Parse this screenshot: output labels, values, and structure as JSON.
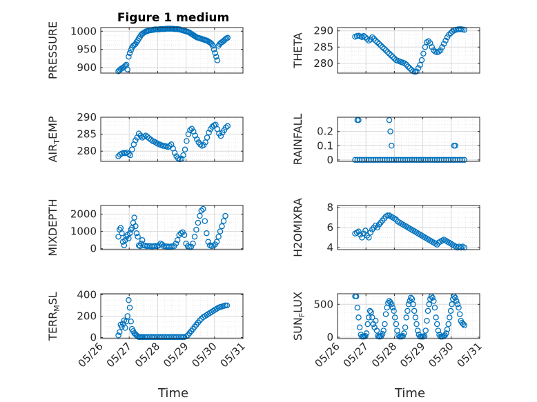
{
  "title": "Figure 1 medium",
  "x_axis_label": "Time",
  "x_tick_labels": [
    "05/26",
    "05/27",
    "05/28",
    "05/29",
    "05/30",
    "05/31"
  ],
  "colors": {
    "marker": "#0072BD",
    "axis": "#262626",
    "grid": "#d9d9d9",
    "minor_grid": "#e6e6e6",
    "background": "#ffffff"
  },
  "chart_data": [
    {
      "type": "scatter",
      "ylabel": "PRESSURE",
      "ylim": [
        885,
        1010
      ],
      "yticks": [
        900,
        950,
        1000
      ],
      "xlim": [
        0,
        5
      ],
      "x": [
        0.62,
        0.66,
        0.7,
        0.74,
        0.78,
        0.82,
        0.86,
        0.9,
        0.94,
        0.98,
        1.02,
        1.06,
        1.1,
        1.14,
        1.18,
        1.22,
        1.26,
        1.3,
        1.34,
        1.38,
        1.42,
        1.46,
        1.5,
        1.54,
        1.58,
        1.62,
        1.66,
        1.7,
        1.74,
        1.78,
        1.82,
        1.86,
        1.9,
        1.94,
        1.98,
        2.02,
        2.06,
        2.1,
        2.14,
        2.18,
        2.22,
        2.26,
        2.3,
        2.34,
        2.38,
        2.42,
        2.46,
        2.5,
        2.54,
        2.58,
        2.62,
        2.66,
        2.7,
        2.74,
        2.78,
        2.82,
        2.86,
        2.9,
        2.94,
        2.98,
        3.02,
        3.06,
        3.1,
        3.14,
        3.18,
        3.22,
        3.26,
        3.3,
        3.34,
        3.38,
        3.42,
        3.46,
        3.5,
        3.54,
        3.58,
        3.62,
        3.66,
        3.7,
        3.74,
        3.78,
        3.82,
        3.86,
        3.9,
        3.94,
        3.98,
        4.02,
        4.06,
        4.1,
        4.14,
        4.18,
        4.22,
        4.26,
        4.3,
        4.34,
        4.38,
        4.42,
        4.46
      ],
      "y": [
        890,
        893,
        896,
        898,
        900,
        902,
        905,
        908,
        895,
        930,
        940,
        948,
        955,
        960,
        962,
        965,
        970,
        975,
        980,
        985,
        990,
        993,
        995,
        997,
        999,
        1000,
        1001,
        1002,
        1003,
        1003,
        1004,
        1004,
        1005,
        1005,
        1005,
        1005,
        1005,
        1006,
        1006,
        1006,
        1006,
        1006,
        1007,
        1007,
        1007,
        1007,
        1007,
        1007,
        1007,
        1006,
        1006,
        1006,
        1006,
        1005,
        1005,
        1004,
        1003,
        1002,
        1001,
        1000,
        999,
        998,
        997,
        995,
        993,
        991,
        989,
        987,
        985,
        983,
        982,
        981,
        980,
        979,
        978,
        977,
        976,
        975,
        974,
        972,
        970,
        968,
        965,
        960,
        950,
        940,
        930,
        920,
        960,
        965,
        968,
        970,
        972,
        975,
        978,
        980,
        982
      ]
    },
    {
      "type": "scatter",
      "ylabel": "THETA",
      "ylim": [
        277,
        291
      ],
      "yticks": [
        280,
        285,
        290
      ],
      "xlim": [
        0,
        5
      ],
      "x": [
        0.62,
        0.68,
        0.74,
        0.8,
        0.86,
        0.92,
        0.98,
        1.04,
        1.1,
        1.16,
        1.22,
        1.28,
        1.34,
        1.4,
        1.46,
        1.52,
        1.58,
        1.64,
        1.7,
        1.76,
        1.82,
        1.88,
        1.94,
        2.0,
        2.06,
        2.12,
        2.18,
        2.24,
        2.3,
        2.36,
        2.42,
        2.48,
        2.54,
        2.6,
        2.66,
        2.72,
        2.78,
        2.84,
        2.9,
        2.96,
        3.02,
        3.08,
        3.14,
        3.2,
        3.26,
        3.32,
        3.38,
        3.44,
        3.5,
        3.56,
        3.62,
        3.68,
        3.74,
        3.8,
        3.86,
        3.92,
        3.98,
        4.04,
        4.1,
        4.16,
        4.22,
        4.28,
        4.34,
        4.4,
        4.46
      ],
      "y": [
        288.2,
        288.4,
        288.5,
        288.3,
        288.1,
        288.4,
        288.0,
        287.5,
        287.0,
        287.3,
        288.0,
        287.6,
        287.0,
        286.5,
        286.0,
        285.5,
        285.0,
        284.5,
        284.0,
        283.5,
        283.0,
        282.5,
        282.0,
        281.5,
        281.0,
        280.8,
        280.6,
        280.4,
        280.2,
        280.0,
        279.6,
        279.0,
        278.5,
        278.0,
        277.6,
        277.4,
        277.5,
        278.5,
        279.5,
        281.0,
        283.0,
        285.0,
        286.5,
        286.8,
        286.2,
        285.0,
        284.0,
        283.6,
        283.4,
        283.6,
        284.0,
        285.0,
        286.0,
        287.0,
        288.0,
        288.8,
        289.3,
        289.8,
        290.1,
        290.3,
        290.4,
        290.5,
        290.5,
        290.4,
        290.3
      ]
    },
    {
      "type": "scatter",
      "ylabel": "AIR_TEMP",
      "ylim": [
        277,
        290
      ],
      "yticks": [
        280,
        285,
        290
      ],
      "xlim": [
        0,
        5
      ],
      "x": [
        0.62,
        0.68,
        0.74,
        0.8,
        0.86,
        0.92,
        0.98,
        1.04,
        1.1,
        1.16,
        1.22,
        1.28,
        1.34,
        1.4,
        1.46,
        1.52,
        1.58,
        1.64,
        1.7,
        1.76,
        1.82,
        1.88,
        1.94,
        2.0,
        2.06,
        2.12,
        2.18,
        2.24,
        2.3,
        2.36,
        2.42,
        2.48,
        2.54,
        2.6,
        2.66,
        2.72,
        2.78,
        2.84,
        2.9,
        2.96,
        3.02,
        3.08,
        3.14,
        3.2,
        3.26,
        3.32,
        3.38,
        3.44,
        3.5,
        3.56,
        3.62,
        3.68,
        3.74,
        3.8,
        3.86,
        3.92,
        3.98,
        4.04,
        4.1,
        4.16,
        4.22,
        4.28,
        4.34,
        4.4,
        4.46
      ],
      "y": [
        278.5,
        279.0,
        279.3,
        279.5,
        279.4,
        279.6,
        279.2,
        278.8,
        280.5,
        282.0,
        283.2,
        284.0,
        285.2,
        284.6,
        284.0,
        284.3,
        284.6,
        284.2,
        283.8,
        283.4,
        283.0,
        282.8,
        282.5,
        282.2,
        282.0,
        281.8,
        281.6,
        281.5,
        281.4,
        281.2,
        281.5,
        282.0,
        280.8,
        279.5,
        278.5,
        277.9,
        277.6,
        277.8,
        278.8,
        280.5,
        283.0,
        285.0,
        286.2,
        286.6,
        285.8,
        284.6,
        283.5,
        282.6,
        282.0,
        281.6,
        281.8,
        282.6,
        284.0,
        285.5,
        286.5,
        287.2,
        287.6,
        287.8,
        286.5,
        285.2,
        284.5,
        285.5,
        286.2,
        287.0,
        287.4
      ]
    },
    {
      "type": "scatter",
      "ylabel": "RAINFALL",
      "ylim": [
        -0.01,
        0.3
      ],
      "yticks": [
        0,
        0.1,
        0.2
      ],
      "xlim": [
        0,
        5
      ],
      "x": [
        0.62,
        0.7,
        0.78,
        0.86,
        0.94,
        1.02,
        1.1,
        1.18,
        1.26,
        1.34,
        1.42,
        1.5,
        1.58,
        1.66,
        1.74,
        1.82,
        1.9,
        1.98,
        2.06,
        2.14,
        2.22,
        2.3,
        2.38,
        2.46,
        2.54,
        2.62,
        2.7,
        2.78,
        2.86,
        2.94,
        3.02,
        3.1,
        3.18,
        3.26,
        3.34,
        3.42,
        3.5,
        3.58,
        3.66,
        3.74,
        3.82,
        3.9,
        3.98,
        4.06,
        4.14,
        4.22,
        4.3,
        4.38,
        4.46,
        0.7,
        0.74,
        1.82,
        1.86,
        1.9,
        4.1,
        4.14
      ],
      "y": [
        0,
        0,
        0,
        0,
        0,
        0,
        0,
        0,
        0,
        0,
        0,
        0,
        0,
        0,
        0,
        0,
        0,
        0,
        0,
        0,
        0,
        0,
        0,
        0,
        0,
        0,
        0,
        0,
        0,
        0,
        0,
        0,
        0,
        0,
        0,
        0,
        0,
        0,
        0,
        0,
        0,
        0,
        0,
        0,
        0,
        0,
        0,
        0,
        0,
        0.28,
        0.28,
        0.28,
        0.2,
        0.1,
        0.1,
        0.1
      ]
    },
    {
      "type": "scatter",
      "ylabel": "MIXDEPTH",
      "ylim": [
        -50,
        2500
      ],
      "yticks": [
        0,
        1000,
        2000
      ],
      "xlim": [
        0,
        5
      ],
      "x": [
        0.62,
        0.66,
        0.7,
        0.74,
        0.78,
        0.82,
        0.86,
        0.9,
        0.94,
        0.98,
        1.02,
        1.06,
        1.1,
        1.14,
        1.18,
        1.22,
        1.26,
        1.3,
        1.34,
        1.38,
        1.42,
        1.46,
        1.5,
        1.56,
        1.62,
        1.68,
        1.74,
        1.8,
        1.86,
        1.92,
        1.98,
        2.04,
        2.1,
        2.16,
        2.22,
        2.28,
        2.34,
        2.4,
        2.46,
        2.52,
        2.58,
        2.64,
        2.7,
        2.76,
        2.82,
        2.88,
        2.94,
        3.0,
        3.06,
        3.12,
        3.18,
        3.24,
        3.3,
        3.36,
        3.42,
        3.48,
        3.54,
        3.6,
        3.66,
        3.72,
        3.78,
        3.84,
        3.9,
        3.96,
        4.02,
        4.08,
        4.14,
        4.2,
        4.26,
        4.32,
        4.38
      ],
      "y": [
        700,
        1100,
        1200,
        900,
        400,
        200,
        500,
        700,
        800,
        600,
        900,
        1100,
        1200,
        1500,
        1800,
        1300,
        900,
        700,
        200,
        150,
        300,
        500,
        200,
        180,
        150,
        160,
        150,
        140,
        150,
        160,
        150,
        200,
        300,
        250,
        150,
        140,
        130,
        120,
        130,
        140,
        150,
        300,
        500,
        800,
        900,
        950,
        800,
        300,
        150,
        100,
        120,
        300,
        700,
        1100,
        1500,
        1900,
        2200,
        2300,
        1600,
        900,
        400,
        200,
        150,
        180,
        250,
        400,
        700,
        1000,
        1300,
        1600,
        1900
      ]
    },
    {
      "type": "scatter",
      "ylabel": "H2OMIXRA",
      "ylim": [
        3.8,
        8.2
      ],
      "yticks": [
        4,
        6,
        8
      ],
      "xlim": [
        0,
        5
      ],
      "x": [
        0.62,
        0.68,
        0.74,
        0.8,
        0.86,
        0.92,
        0.98,
        1.04,
        1.1,
        1.16,
        1.22,
        1.28,
        1.34,
        1.4,
        1.46,
        1.52,
        1.58,
        1.64,
        1.7,
        1.76,
        1.82,
        1.88,
        1.94,
        2.0,
        2.06,
        2.12,
        2.18,
        2.24,
        2.3,
        2.36,
        2.42,
        2.48,
        2.54,
        2.6,
        2.66,
        2.72,
        2.78,
        2.84,
        2.9,
        2.96,
        3.02,
        3.08,
        3.14,
        3.2,
        3.26,
        3.32,
        3.38,
        3.44,
        3.5,
        3.56,
        3.62,
        3.68,
        3.74,
        3.8,
        3.86,
        3.92,
        3.98,
        4.04,
        4.1,
        4.16,
        4.22,
        4.28,
        4.34,
        4.4,
        4.46
      ],
      "y": [
        5.4,
        5.5,
        5.6,
        5.3,
        5.0,
        5.4,
        5.7,
        5.2,
        5.0,
        5.5,
        5.8,
        6.0,
        6.2,
        6.0,
        6.3,
        6.5,
        6.7,
        6.9,
        7.1,
        7.2,
        7.2,
        7.1,
        7.0,
        6.9,
        6.8,
        6.6,
        6.5,
        6.4,
        6.3,
        6.2,
        6.1,
        6.0,
        5.9,
        5.8,
        5.7,
        5.6,
        5.5,
        5.4,
        5.3,
        5.2,
        5.1,
        5.0,
        4.9,
        4.8,
        4.7,
        4.6,
        4.5,
        4.4,
        4.3,
        4.5,
        4.6,
        4.7,
        4.8,
        4.7,
        4.6,
        4.5,
        4.4,
        4.3,
        4.2,
        4.1,
        4.0,
        4.1,
        4.0,
        4.1,
        4.0
      ]
    },
    {
      "type": "scatter",
      "ylabel": "TERR_MSL",
      "ylim": [
        -10,
        410
      ],
      "yticks": [
        0,
        200,
        400
      ],
      "xlim": [
        0,
        5
      ],
      "x": [
        0.62,
        0.66,
        0.7,
        0.74,
        0.78,
        0.82,
        0.86,
        0.9,
        0.94,
        0.98,
        1.02,
        1.06,
        1.1,
        1.14,
        1.18,
        1.22,
        1.26,
        1.3,
        1.34,
        1.38,
        1.42,
        1.46,
        1.5,
        1.56,
        1.62,
        1.68,
        1.74,
        1.8,
        1.86,
        1.92,
        1.98,
        2.04,
        2.1,
        2.16,
        2.22,
        2.28,
        2.34,
        2.4,
        2.46,
        2.52,
        2.58,
        2.64,
        2.7,
        2.76,
        2.82,
        2.88,
        2.94,
        3.0,
        3.06,
        3.12,
        3.18,
        3.24,
        3.3,
        3.36,
        3.42,
        3.48,
        3.54,
        3.6,
        3.66,
        3.72,
        3.78,
        3.84,
        3.9,
        3.96,
        4.02,
        4.08,
        4.14,
        4.2,
        4.26,
        4.32,
        4.38,
        4.44
      ],
      "y": [
        20,
        50,
        120,
        100,
        130,
        160,
        90,
        150,
        200,
        350,
        280,
        150,
        80,
        60,
        40,
        30,
        20,
        10,
        5,
        5,
        5,
        5,
        5,
        5,
        5,
        5,
        5,
        5,
        5,
        5,
        5,
        5,
        5,
        5,
        5,
        5,
        5,
        5,
        5,
        5,
        5,
        5,
        5,
        5,
        5,
        5,
        5,
        10,
        20,
        40,
        60,
        80,
        100,
        120,
        140,
        160,
        175,
        190,
        200,
        210,
        220,
        230,
        240,
        250,
        260,
        270,
        280,
        285,
        290,
        295,
        300,
        300
      ]
    },
    {
      "type": "scatter",
      "ylabel": "SUN_FLUX",
      "ylim": [
        -20,
        660
      ],
      "yticks": [
        0,
        500
      ],
      "xlim": [
        0,
        5
      ],
      "x": [
        0.62,
        0.66,
        0.7,
        0.74,
        0.78,
        0.82,
        0.86,
        0.9,
        0.94,
        0.98,
        1.02,
        1.06,
        1.1,
        1.14,
        1.18,
        1.22,
        1.26,
        1.3,
        1.34,
        1.38,
        1.42,
        1.46,
        1.5,
        1.54,
        1.58,
        1.62,
        1.66,
        1.7,
        1.74,
        1.78,
        1.82,
        1.86,
        1.9,
        1.94,
        1.98,
        2.02,
        2.06,
        2.1,
        2.14,
        2.18,
        2.22,
        2.26,
        2.3,
        2.34,
        2.38,
        2.42,
        2.46,
        2.5,
        2.54,
        2.58,
        2.62,
        2.66,
        2.7,
        2.74,
        2.78,
        2.82,
        2.86,
        2.9,
        2.94,
        2.98,
        3.02,
        3.06,
        3.1,
        3.14,
        3.18,
        3.22,
        3.26,
        3.3,
        3.34,
        3.38,
        3.42,
        3.46,
        3.5,
        3.54,
        3.58,
        3.62,
        3.66,
        3.7,
        3.74,
        3.78,
        3.82,
        3.86,
        3.9,
        3.94,
        3.98,
        4.02,
        4.06,
        4.1,
        4.14,
        4.18,
        4.22,
        4.26,
        4.3,
        4.34,
        4.38,
        4.42,
        4.46
      ],
      "y": [
        620,
        620,
        450,
        300,
        150,
        40,
        10,
        10,
        10,
        20,
        60,
        200,
        300,
        400,
        380,
        300,
        200,
        150,
        250,
        100,
        20,
        10,
        10,
        20,
        50,
        100,
        200,
        350,
        450,
        520,
        550,
        530,
        500,
        450,
        400,
        300,
        200,
        100,
        30,
        10,
        10,
        10,
        20,
        60,
        150,
        300,
        400,
        500,
        550,
        600,
        580,
        500,
        400,
        300,
        200,
        100,
        40,
        10,
        10,
        10,
        10,
        20,
        100,
        250,
        400,
        500,
        580,
        620,
        600,
        550,
        450,
        300,
        200,
        100,
        40,
        10,
        10,
        10,
        20,
        30,
        60,
        120,
        200,
        300,
        400,
        500,
        580,
        620,
        600,
        550,
        500,
        450,
        350,
        250,
        220,
        200,
        180
      ]
    }
  ]
}
